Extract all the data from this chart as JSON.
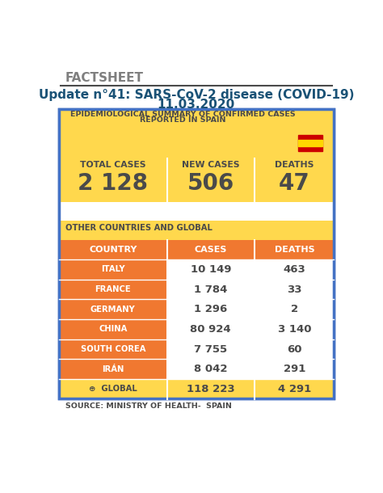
{
  "title_line1": "Update n°41: SARS-CoV-2 disease (COVID-19)",
  "title_line2": "11.03.2020",
  "factsheet_label": "FACTSHEET",
  "header_line1": "EPIDEMIOLOGICAL SUMMARY OF CONFIRMED CASES",
  "header_line2": "REPORTED IN SPAIN",
  "spain_stats_labels": [
    "TOTAL CASES",
    "NEW CASES",
    "DEATHS"
  ],
  "spain_stats_values": [
    "2 128",
    "506",
    "47"
  ],
  "other_label": "OTHER COUNTRIES AND GLOBAL",
  "table_headers": [
    "COUNTRY",
    "CASES",
    "DEATHS"
  ],
  "table_data": [
    [
      "ITALY",
      "10 149",
      "463"
    ],
    [
      "FRANCE",
      "1 784",
      "33"
    ],
    [
      "GERMANY",
      "1 296",
      "2"
    ],
    [
      "CHINA",
      "80 924",
      "3 140"
    ],
    [
      "SOUTH COREA",
      "7 755",
      "60"
    ],
    [
      "IRÁN",
      "8 042",
      "291"
    ],
    [
      "⊕  GLOBAL",
      "118 223",
      "4 291"
    ]
  ],
  "source_label": "SOURCE: MINISTRY OF HEALTH-  SPAIN",
  "color_orange": "#F07830",
  "color_yellow": "#FFD84D",
  "color_white": "#FFFFFF",
  "color_blue_border": "#4472C4",
  "color_dark_text": "#4A4A4A",
  "color_title_blue": "#1A5276",
  "color_gray_text": "#7F7F7F",
  "background_color": "#FFFFFF"
}
